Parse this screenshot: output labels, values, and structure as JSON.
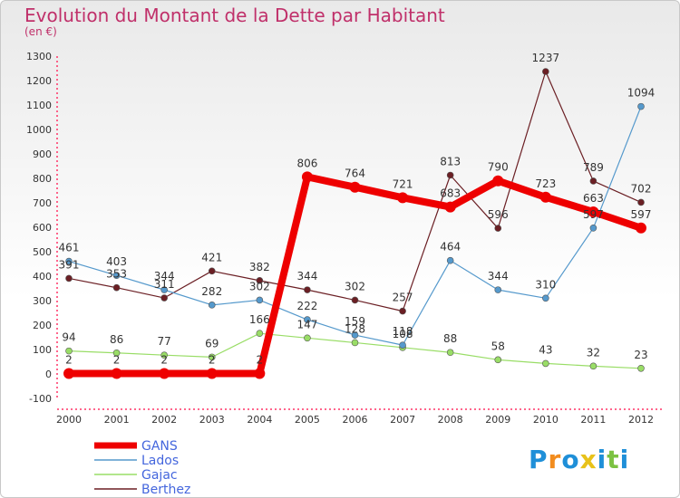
{
  "title": "Evolution du Montant de la Dette par Habitant",
  "unit_label": "(en €)",
  "brand": {
    "letters": [
      "P",
      "r",
      "o",
      "x",
      "i",
      "t",
      "i"
    ],
    "colors": [
      "#1f8fd8",
      "#f28c1e",
      "#1f8fd8",
      "#e8c21a",
      "#1f8fd8",
      "#7cc242",
      "#1f8fd8"
    ]
  },
  "chart_data": {
    "type": "line",
    "x": [
      "2000",
      "2001",
      "2002",
      "2003",
      "2004",
      "2005",
      "2006",
      "2007",
      "2008",
      "2009",
      "2010",
      "2011",
      "2012"
    ],
    "ylim": [
      -100,
      1300
    ],
    "yticks": [
      -100,
      0,
      100,
      200,
      300,
      400,
      500,
      600,
      700,
      800,
      900,
      1000,
      1100,
      1200,
      1300
    ],
    "grid": false,
    "legend_position": "bottom-left",
    "series": [
      {
        "name": "Berthez",
        "color": "#6b1f24",
        "width": 1.2,
        "marker": 3.5,
        "values": [
          391,
          353,
          311,
          421,
          382,
          344,
          302,
          257,
          813,
          596,
          1237,
          789,
          702
        ],
        "labels": [
          "391",
          "353",
          "311",
          "421",
          "382",
          "344",
          "302",
          "257",
          "813",
          "596",
          "1237",
          "789",
          "702"
        ]
      },
      {
        "name": "Gajac",
        "color": "#99dd66",
        "width": 1.2,
        "marker": 3.5,
        "values": [
          94,
          86,
          77,
          69,
          166,
          147,
          128,
          108,
          88,
          58,
          43,
          32,
          23
        ],
        "labels": [
          "94",
          "86",
          "77",
          "69",
          "166",
          "147",
          "128",
          "108",
          "88",
          "58",
          "43",
          "32",
          "23"
        ]
      },
      {
        "name": "Lados",
        "color": "#5599cc",
        "width": 1.2,
        "marker": 3.5,
        "values": [
          461,
          403,
          344,
          282,
          302,
          222,
          159,
          118,
          464,
          344,
          310,
          597,
          1094
        ],
        "labels": [
          "461",
          "403",
          "344",
          "282",
          "302",
          "222",
          "159",
          "118",
          "464",
          "344",
          "310",
          "597",
          "1094"
        ]
      },
      {
        "name": "GANS",
        "color": "#ee0000",
        "width": 8,
        "marker": 6,
        "values": [
          2,
          2,
          2,
          2,
          2,
          806,
          764,
          721,
          683,
          790,
          723,
          663,
          597
        ],
        "labels": [
          "2",
          "2",
          "2",
          "2",
          "2",
          "806",
          "764",
          "721",
          "683",
          "790",
          "723",
          "663",
          "597"
        ]
      }
    ],
    "legend_order": [
      "GANS",
      "Lados",
      "Gajac",
      "Berthez"
    ]
  }
}
